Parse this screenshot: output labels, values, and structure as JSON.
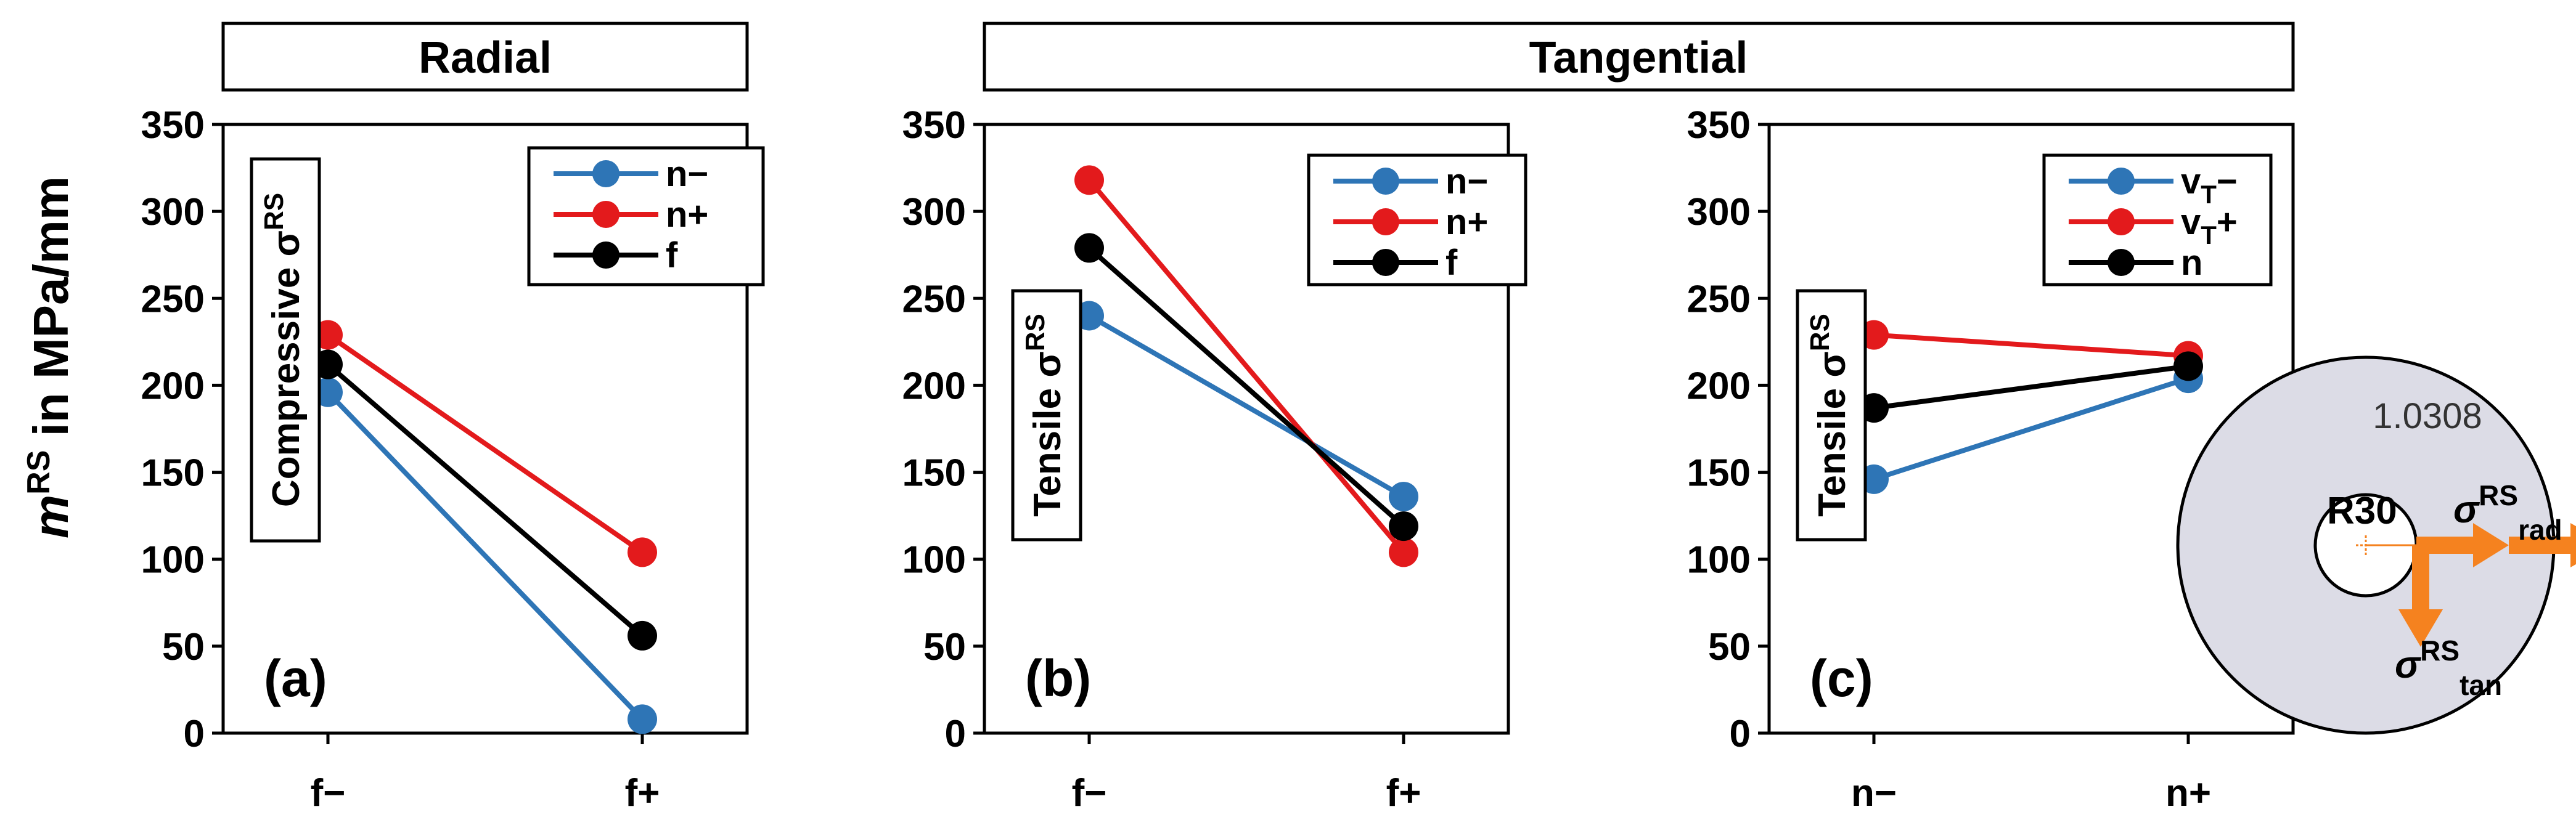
{
  "figure": {
    "ylabel_italic": "m",
    "ylabel_sup": "RS",
    "ylabel_rest": " in MPa/mm",
    "header_radial": "Radial",
    "header_tangential": "Tangential"
  },
  "colors": {
    "blue": "#2E75B6",
    "red": "#E31A1C",
    "black": "#000000",
    "orange": "#F5821F",
    "inset_fill": "#DCDCE6"
  },
  "inset": {
    "material": "1.0308",
    "radius_label": "R30",
    "sigma": "σ",
    "sup": "RS",
    "rad_sub": "rad",
    "tan_sub": "tan"
  },
  "chart_data": [
    {
      "type": "line",
      "panel_label": "(a)",
      "side_label": "Compressive σ",
      "side_label_sup": "RS",
      "categories": [
        "f−",
        "f+"
      ],
      "ylim": [
        0,
        350
      ],
      "yticks": [
        0,
        50,
        100,
        150,
        200,
        250,
        300,
        350
      ],
      "series": [
        {
          "name": "n−",
          "color": "blue",
          "values": [
            196,
            8
          ]
        },
        {
          "name": "n+",
          "color": "red",
          "values": [
            229,
            104
          ]
        },
        {
          "name": "f",
          "color": "black",
          "values": [
            212,
            56
          ]
        }
      ]
    },
    {
      "type": "line",
      "panel_label": "(b)",
      "side_label": "Tensile σ",
      "side_label_sup": "RS",
      "categories": [
        "f−",
        "f+"
      ],
      "ylim": [
        0,
        350
      ],
      "yticks": [
        0,
        50,
        100,
        150,
        200,
        250,
        300,
        350
      ],
      "series": [
        {
          "name": "n−",
          "color": "blue",
          "values": [
            240,
            136
          ]
        },
        {
          "name": "n+",
          "color": "red",
          "values": [
            318,
            104
          ]
        },
        {
          "name": "f",
          "color": "black",
          "values": [
            279,
            119
          ]
        }
      ]
    },
    {
      "type": "line",
      "panel_label": "(c)",
      "side_label": "Tensile σ",
      "side_label_sup": "RS",
      "categories": [
        "n−",
        "n+"
      ],
      "ylim": [
        0,
        350
      ],
      "yticks": [
        0,
        50,
        100,
        150,
        200,
        250,
        300,
        350
      ],
      "series": [
        {
          "name": "v",
          "name_sub": "T",
          "name_suffix": "−",
          "color": "blue",
          "values": [
            146,
            204
          ]
        },
        {
          "name": "v",
          "name_sub": "T",
          "name_suffix": "+",
          "color": "red",
          "values": [
            229,
            217
          ]
        },
        {
          "name": "n",
          "color": "black",
          "values": [
            187,
            211
          ]
        }
      ]
    }
  ]
}
